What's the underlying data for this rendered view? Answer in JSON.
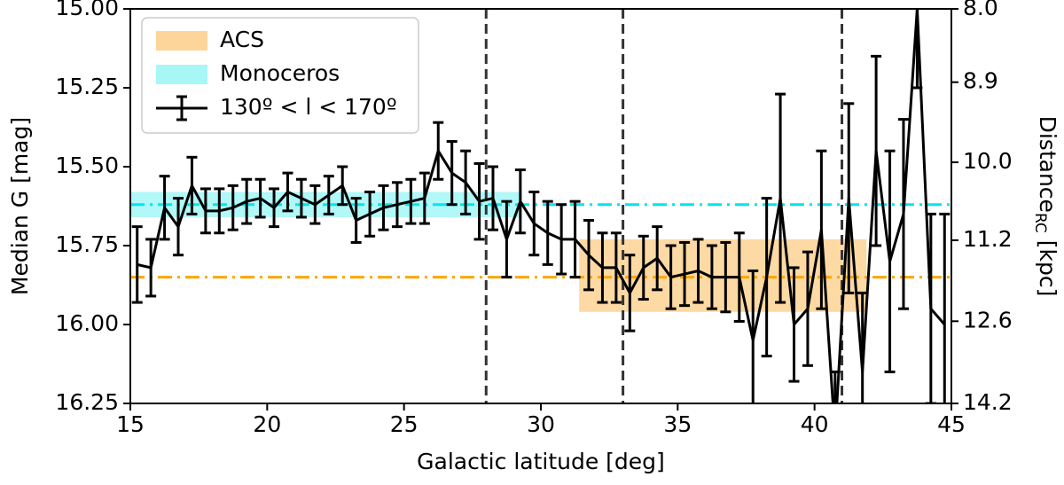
{
  "chart_data": {
    "type": "errorbar-line",
    "xlabel": "Galactic latitude [deg]",
    "ylabel": "Median G [mag]",
    "y2label": {
      "text": "Distance",
      "subscript": "RC",
      "unit": "[kpc]"
    },
    "xlim": [
      15,
      45
    ],
    "xticks": [
      15,
      20,
      25,
      30,
      35,
      40,
      45
    ],
    "ylim": [
      15,
      16.25
    ],
    "yinvert": true,
    "yticks": [
      {
        "value": 15,
        "label": "15.00"
      },
      15.25,
      {
        "value": 15.5,
        "label": "15.50"
      },
      15.75,
      {
        "value": 16,
        "label": "16.00"
      },
      16.25
    ],
    "y2lim": [
      8.0,
      14.2
    ],
    "y2log": true,
    "y2ticks": [
      {
        "value": 8,
        "label": "8.0"
      },
      8.9,
      {
        "value": 10,
        "label": "10.0"
      },
      11.2,
      12.6,
      14.2
    ],
    "bands": [
      {
        "name": "ACS",
        "color": "#fdd59a",
        "x": [
          31.4,
          41.9
        ],
        "y": [
          15.73,
          15.96
        ]
      },
      {
        "name": "Monoceros",
        "color": "#a8f7f7",
        "x": [
          15,
          29.3
        ],
        "y": [
          15.58,
          15.66
        ]
      }
    ],
    "hlines": [
      {
        "value": 15.85,
        "color": "#ffa500"
      },
      {
        "value": 15.62,
        "color": "#00e5ee"
      }
    ],
    "vlines": [
      28,
      33,
      41
    ],
    "series": [
      {
        "name": "130º < l < 170º",
        "color": "#000000",
        "x": [
          15.25,
          15.75,
          16.25,
          16.75,
          17.25,
          17.75,
          18.25,
          18.75,
          19.25,
          19.75,
          20.25,
          20.75,
          21.25,
          21.75,
          22.25,
          22.75,
          23.25,
          23.75,
          24.25,
          24.75,
          25.25,
          25.75,
          26.25,
          26.75,
          27.25,
          27.75,
          28.25,
          28.75,
          29.25,
          29.75,
          30.25,
          30.75,
          31.25,
          31.75,
          32.25,
          32.75,
          33.25,
          33.75,
          34.25,
          34.75,
          35.25,
          35.75,
          36.25,
          36.75,
          37.25,
          37.75,
          38.25,
          38.75,
          39.25,
          39.75,
          40.25,
          40.75,
          41.25,
          41.75,
          42.25,
          42.75,
          43.25,
          43.75,
          44.25,
          44.75
        ],
        "values": [
          15.81,
          15.82,
          15.63,
          15.69,
          15.56,
          15.64,
          15.64,
          15.63,
          15.61,
          15.6,
          15.63,
          15.58,
          15.6,
          15.62,
          15.59,
          15.56,
          15.67,
          15.65,
          15.63,
          15.62,
          15.61,
          15.6,
          15.45,
          15.52,
          15.55,
          15.61,
          15.6,
          15.73,
          15.61,
          15.68,
          15.71,
          15.73,
          15.73,
          15.78,
          15.82,
          15.82,
          15.9,
          15.82,
          15.79,
          15.85,
          15.84,
          15.83,
          15.85,
          15.85,
          15.85,
          16.05,
          15.85,
          15.6,
          16.0,
          15.95,
          15.7,
          16.35,
          15.6,
          16.15,
          15.45,
          15.8,
          15.65,
          15.0,
          15.95,
          16.0
        ],
        "errors": [
          0.12,
          0.09,
          0.1,
          0.09,
          0.09,
          0.07,
          0.07,
          0.07,
          0.07,
          0.06,
          0.06,
          0.06,
          0.06,
          0.06,
          0.06,
          0.06,
          0.07,
          0.07,
          0.07,
          0.07,
          0.07,
          0.08,
          0.09,
          0.1,
          0.1,
          0.12,
          0.1,
          0.12,
          0.1,
          0.1,
          0.1,
          0.11,
          0.12,
          0.11,
          0.11,
          0.11,
          0.12,
          0.1,
          0.1,
          0.1,
          0.1,
          0.1,
          0.1,
          0.11,
          0.14,
          0.22,
          0.25,
          0.33,
          0.18,
          0.18,
          0.25,
          0.2,
          0.3,
          0.25,
          0.3,
          0.35,
          0.3,
          0.25,
          0.3,
          0.35
        ]
      }
    ]
  }
}
